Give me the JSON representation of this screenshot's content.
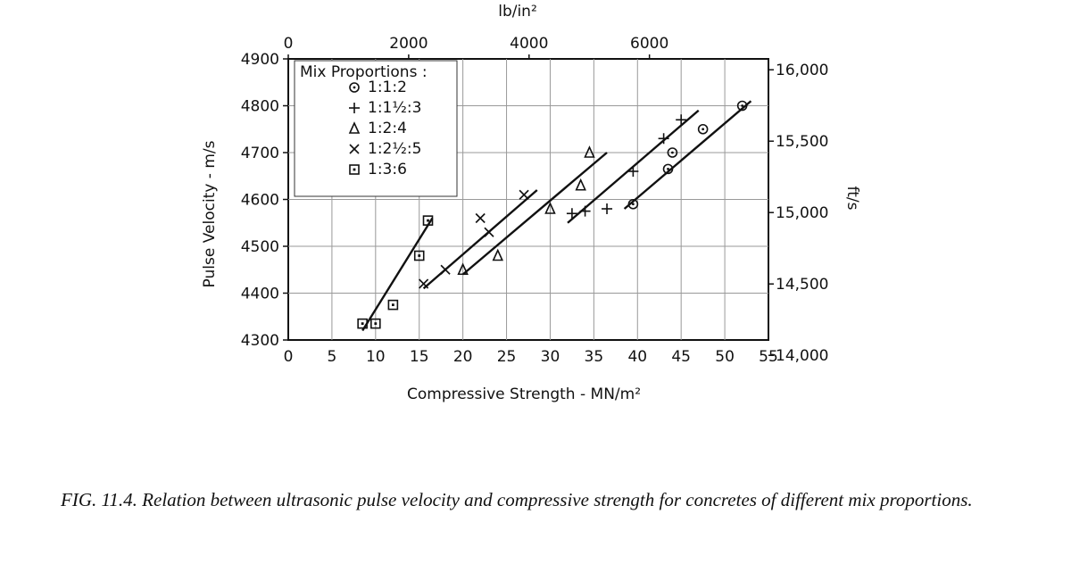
{
  "caption": "FIG. 11.4. Relation between ultrasonic pulse velocity and compressive strength for concretes of different mix proportions.",
  "chart_data": {
    "type": "scatter",
    "xlabel": "Compressive Strength - MN/m²",
    "ylabel": "Pulse Velocity - m/s",
    "x2label": "lb/in²",
    "y2label": "ft/s",
    "xlim": [
      0,
      55
    ],
    "ylim": [
      4300,
      4900
    ],
    "x_ticks": [
      0,
      5,
      10,
      15,
      20,
      25,
      30,
      35,
      40,
      45,
      50,
      55
    ],
    "y_ticks": [
      4300,
      4400,
      4500,
      4600,
      4700,
      4800,
      4900
    ],
    "x2_ticks": [
      {
        "label": "0",
        "value": 0
      },
      {
        "label": "2000",
        "value": 2000
      },
      {
        "label": "4000",
        "value": 4000
      },
      {
        "label": "6000",
        "value": 6000
      }
    ],
    "y2_ticks": [
      {
        "label": "14,000",
        "value": 14000
      },
      {
        "label": "14,500",
        "value": 14500
      },
      {
        "label": "15,000",
        "value": 15000
      },
      {
        "label": "15,500",
        "value": 15500
      },
      {
        "label": "16,000",
        "value": 16000
      }
    ],
    "grid": true,
    "legend": {
      "title": "Mix Proportions :",
      "placement": "top-left",
      "entries": [
        "1:1:2",
        "1:1½:3",
        "1:2:4",
        "1:2½:5",
        "1:3:6"
      ]
    },
    "series": [
      {
        "name": "1:1:2",
        "marker": "circle-dot",
        "points": [
          [
            39.5,
            4590
          ],
          [
            43.5,
            4665
          ],
          [
            44.0,
            4700
          ],
          [
            47.5,
            4750
          ],
          [
            52.0,
            4800
          ]
        ],
        "fit": [
          [
            38.5,
            4580
          ],
          [
            53.0,
            4810
          ]
        ]
      },
      {
        "name": "1:1½:3",
        "marker": "plus",
        "points": [
          [
            32.5,
            4570
          ],
          [
            34.0,
            4575
          ],
          [
            36.5,
            4580
          ],
          [
            39.5,
            4660
          ],
          [
            43.0,
            4730
          ],
          [
            45.0,
            4770
          ]
        ],
        "fit": [
          [
            32.0,
            4550
          ],
          [
            47.0,
            4790
          ]
        ]
      },
      {
        "name": "1:2:4",
        "marker": "triangle",
        "points": [
          [
            20.0,
            4450
          ],
          [
            24.0,
            4480
          ],
          [
            30.0,
            4580
          ],
          [
            33.5,
            4630
          ],
          [
            34.5,
            4700
          ]
        ],
        "fit": [
          [
            20.0,
            4440
          ],
          [
            36.5,
            4700
          ]
        ]
      },
      {
        "name": "1:2½:5",
        "marker": "x",
        "points": [
          [
            15.5,
            4420
          ],
          [
            18.0,
            4450
          ],
          [
            22.0,
            4560
          ],
          [
            23.0,
            4530
          ],
          [
            27.0,
            4610
          ]
        ],
        "fit": [
          [
            15.5,
            4410
          ],
          [
            28.5,
            4620
          ]
        ]
      },
      {
        "name": "1:3:6",
        "marker": "square-dot",
        "points": [
          [
            8.5,
            4335
          ],
          [
            10.0,
            4335
          ],
          [
            12.0,
            4375
          ],
          [
            15.0,
            4480
          ],
          [
            16.0,
            4555
          ]
        ],
        "fit": [
          [
            8.5,
            4320
          ],
          [
            16.5,
            4560
          ]
        ]
      }
    ]
  }
}
